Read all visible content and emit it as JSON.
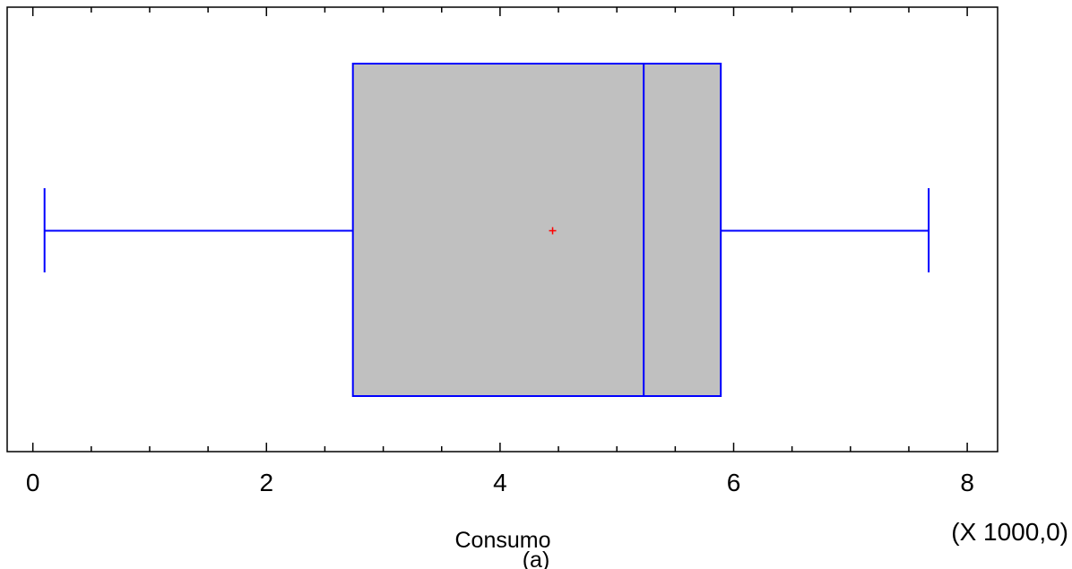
{
  "chart_data": {
    "type": "box",
    "orientation": "horizontal",
    "xlabel": "Consumo",
    "x_multiplier_label": "(X 1000,0)",
    "caption": "(a)",
    "x_ticks": [
      "0",
      "2",
      "4",
      "6",
      "8"
    ],
    "x_tick_values": [
      0,
      2,
      4,
      6,
      8
    ],
    "xlim": [
      -0.22,
      8.26
    ],
    "minor_tick_step": 0.5,
    "box": {
      "min": 0.1,
      "q1": 2.74,
      "median": 5.23,
      "mean": 4.45,
      "q3": 5.89,
      "max": 7.67
    },
    "colors": {
      "box_fill": "#c0c0c0",
      "box_stroke": "#0000ff",
      "mean_marker": "#ff0000",
      "frame": "#000000"
    }
  }
}
